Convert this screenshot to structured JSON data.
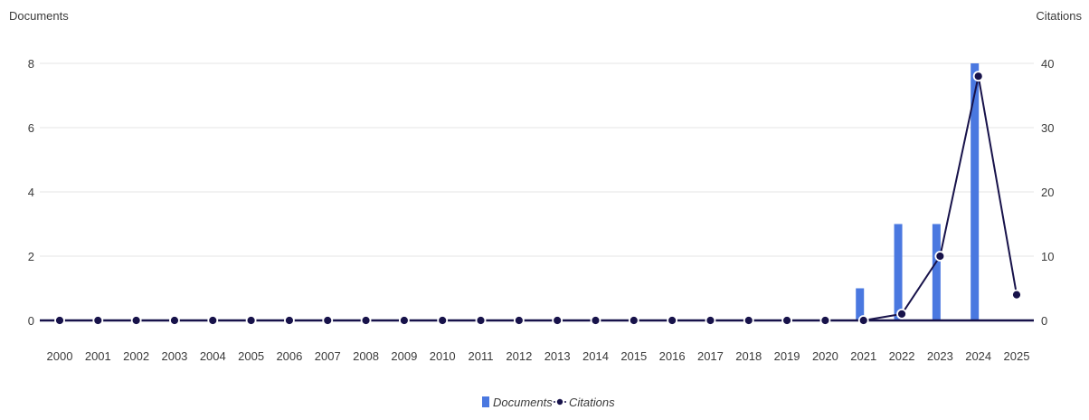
{
  "chart_data": {
    "type": "bar",
    "categories": [
      "2000",
      "2001",
      "2002",
      "2003",
      "2004",
      "2005",
      "2006",
      "2007",
      "2008",
      "2009",
      "2010",
      "2011",
      "2012",
      "2013",
      "2014",
      "2015",
      "2016",
      "2017",
      "2018",
      "2019",
      "2020",
      "2021",
      "2022",
      "2023",
      "2024",
      "2025"
    ],
    "series": [
      {
        "name": "Documents",
        "type": "bar",
        "axis": "left",
        "color": "#4a78e0",
        "values": [
          0,
          0,
          0,
          0,
          0,
          0,
          0,
          0,
          0,
          0,
          0,
          0,
          0,
          0,
          0,
          0,
          0,
          0,
          0,
          0,
          0,
          1,
          3,
          3,
          8,
          0
        ]
      },
      {
        "name": "Citations",
        "type": "line",
        "axis": "right",
        "color": "#17124a",
        "values": [
          0,
          0,
          0,
          0,
          0,
          0,
          0,
          0,
          0,
          0,
          0,
          0,
          0,
          0,
          0,
          0,
          0,
          0,
          0,
          0,
          0,
          0,
          1,
          10,
          38,
          4
        ]
      }
    ],
    "ylabel_left": "Documents",
    "ylabel_right": "Citations",
    "ylim_left": [
      0,
      8
    ],
    "ylim_right": [
      0,
      40
    ],
    "yticks_left": [
      "0",
      "2",
      "4",
      "6",
      "8"
    ],
    "yticks_right": [
      "0",
      "10",
      "20",
      "30",
      "40"
    ],
    "grid": true,
    "legend_position": "bottom-center"
  }
}
